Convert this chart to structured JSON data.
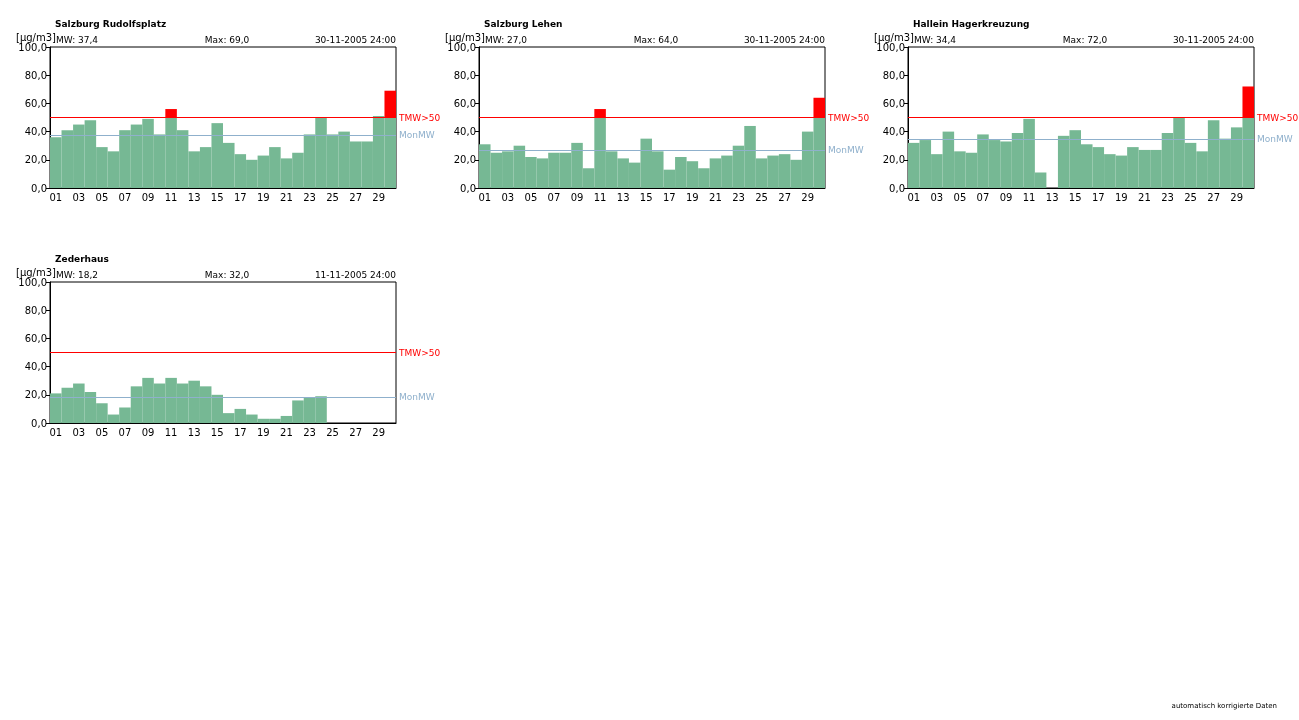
{
  "chart_data": [
    {
      "type": "bar",
      "title": "Salzburg Rudolfsplatz",
      "ylabel": "[µg/m3]",
      "annotations": [
        "MW: 37,4",
        "Max: 69,0",
        "30-11-2005 24:00"
      ],
      "categories": [
        "01",
        null,
        "03",
        null,
        "05",
        null,
        "07",
        null,
        "09",
        null,
        "11",
        null,
        "13",
        null,
        "15",
        null,
        "17",
        null,
        "19",
        null,
        "21",
        null,
        "23",
        null,
        "25",
        null,
        "27",
        null,
        "29",
        null
      ],
      "stacked": true,
      "series": [
        {
          "color": "#76b894",
          "values": [
            36,
            41,
            45,
            48,
            29,
            26,
            41,
            45,
            49,
            38,
            50,
            41,
            26,
            29,
            46,
            32,
            24,
            20,
            23,
            29,
            21,
            25,
            38,
            50,
            38,
            40,
            33,
            33,
            51,
            50
          ]
        },
        {
          "color": "#ff0000",
          "values": [
            null,
            null,
            null,
            null,
            null,
            null,
            null,
            null,
            null,
            null,
            6,
            null,
            null,
            null,
            null,
            null,
            null,
            null,
            null,
            null,
            null,
            null,
            null,
            null,
            null,
            null,
            null,
            null,
            null,
            19
          ]
        }
      ],
      "ylim": [
        0,
        100
      ],
      "yticks": [
        {
          "value": 0,
          "label": "0,0"
        },
        {
          "value": 20,
          "label": "20,0"
        },
        {
          "value": 40,
          "label": "40,0"
        },
        {
          "value": 60,
          "label": "60,0"
        },
        {
          "value": 80,
          "label": "80,0"
        },
        {
          "value": 100,
          "label": "100,0"
        }
      ],
      "ref_lines": [
        {
          "axis": "y",
          "value": 50,
          "label": "TMW>50",
          "color": "#ff0000"
        },
        {
          "axis": "y",
          "value": 37.4,
          "label": "MonMW",
          "color": "#8fb0cc"
        }
      ]
    },
    {
      "type": "bar",
      "title": "Salzburg Lehen",
      "ylabel": "[µg/m3]",
      "annotations": [
        "MW: 27,0",
        "Max: 64,0",
        "30-11-2005 24:00"
      ],
      "categories": [
        "01",
        null,
        "03",
        null,
        "05",
        null,
        "07",
        null,
        "09",
        null,
        "11",
        null,
        "13",
        null,
        "15",
        null,
        "17",
        null,
        "19",
        null,
        "21",
        null,
        "23",
        null,
        "25",
        null,
        "27",
        null,
        "29",
        null
      ],
      "stacked": true,
      "series": [
        {
          "color": "#76b894",
          "values": [
            31,
            25,
            26,
            30,
            22,
            21,
            25,
            25,
            32,
            14,
            50,
            26,
            21,
            18,
            35,
            26,
            13,
            22,
            19,
            14,
            21,
            23,
            30,
            44,
            21,
            23,
            24,
            20,
            40,
            50
          ]
        },
        {
          "color": "#ff0000",
          "values": [
            null,
            null,
            null,
            null,
            null,
            null,
            null,
            null,
            null,
            null,
            6,
            null,
            null,
            null,
            null,
            null,
            null,
            null,
            null,
            null,
            null,
            null,
            null,
            null,
            null,
            null,
            null,
            null,
            null,
            14
          ]
        }
      ],
      "ylim": [
        0,
        100
      ],
      "yticks": [
        {
          "value": 0,
          "label": "0,0"
        },
        {
          "value": 20,
          "label": "20,0"
        },
        {
          "value": 40,
          "label": "40,0"
        },
        {
          "value": 60,
          "label": "60,0"
        },
        {
          "value": 80,
          "label": "80,0"
        },
        {
          "value": 100,
          "label": "100,0"
        }
      ],
      "ref_lines": [
        {
          "axis": "y",
          "value": 50,
          "label": "TMW>50",
          "color": "#ff0000"
        },
        {
          "axis": "y",
          "value": 27.0,
          "label": "MonMW",
          "color": "#8fb0cc"
        }
      ]
    },
    {
      "type": "bar",
      "title": "Hallein Hagerkreuzung",
      "ylabel": "[µg/m3]",
      "annotations": [
        "MW: 34,4",
        "Max: 72,0",
        "30-11-2005 24:00"
      ],
      "categories": [
        "01",
        null,
        "03",
        null,
        "05",
        null,
        "07",
        null,
        "09",
        null,
        "11",
        null,
        "13",
        null,
        "15",
        null,
        "17",
        null,
        "19",
        null,
        "21",
        null,
        "23",
        null,
        "25",
        null,
        "27",
        null,
        "29",
        null
      ],
      "stacked": true,
      "series": [
        {
          "color": "#76b894",
          "values": [
            32,
            34,
            24,
            40,
            26,
            25,
            38,
            34,
            33,
            39,
            49,
            11,
            null,
            37,
            41,
            31,
            29,
            24,
            23,
            29,
            27,
            27,
            39,
            50,
            32,
            26,
            48,
            35,
            43,
            50
          ]
        },
        {
          "color": "#ff0000",
          "values": [
            null,
            null,
            null,
            null,
            null,
            null,
            null,
            null,
            null,
            null,
            null,
            null,
            null,
            null,
            null,
            null,
            null,
            null,
            null,
            null,
            null,
            null,
            null,
            null,
            null,
            null,
            null,
            null,
            null,
            22
          ]
        }
      ],
      "ylim": [
        0,
        100
      ],
      "yticks": [
        {
          "value": 0,
          "label": "0,0"
        },
        {
          "value": 20,
          "label": "20,0"
        },
        {
          "value": 40,
          "label": "40,0"
        },
        {
          "value": 60,
          "label": "60,0"
        },
        {
          "value": 80,
          "label": "80,0"
        },
        {
          "value": 100,
          "label": "100,0"
        }
      ],
      "ref_lines": [
        {
          "axis": "y",
          "value": 50,
          "label": "TMW>50",
          "color": "#ff0000"
        },
        {
          "axis": "y",
          "value": 34.4,
          "label": "MonMW",
          "color": "#8fb0cc"
        }
      ]
    },
    {
      "type": "bar",
      "title": "Zederhaus",
      "ylabel": "[µg/m3]",
      "annotations": [
        "MW: 18,2",
        "Max: 32,0",
        "11-11-2005 24:00"
      ],
      "categories": [
        "01",
        null,
        "03",
        null,
        "05",
        null,
        "07",
        null,
        "09",
        null,
        "11",
        null,
        "13",
        null,
        "15",
        null,
        "17",
        null,
        "19",
        null,
        "21",
        null,
        "23",
        null,
        "25",
        null,
        "27",
        null,
        "29",
        null
      ],
      "series": [
        {
          "color": "#76b894",
          "values": [
            21,
            25,
            28,
            22,
            14,
            6,
            11,
            26,
            32,
            28,
            32,
            28,
            30,
            26,
            20,
            7,
            10,
            6,
            3,
            3,
            5,
            16,
            18,
            19,
            null,
            null,
            null,
            null,
            null,
            null
          ]
        }
      ],
      "ylim": [
        0,
        100
      ],
      "yticks": [
        {
          "value": 0,
          "label": "0,0"
        },
        {
          "value": 20,
          "label": "20,0"
        },
        {
          "value": 40,
          "label": "40,0"
        },
        {
          "value": 60,
          "label": "60,0"
        },
        {
          "value": 80,
          "label": "80,0"
        },
        {
          "value": 100,
          "label": "100,0"
        }
      ],
      "ref_lines": [
        {
          "axis": "y",
          "value": 50,
          "label": "TMW>50",
          "color": "#ff0000"
        },
        {
          "axis": "y",
          "value": 18.2,
          "label": "MonMW",
          "color": "#8fb0cc"
        }
      ]
    },
    {
      "type": "other",
      "annotations": [
        "automatisch korrigierte Daten"
      ]
    }
  ]
}
